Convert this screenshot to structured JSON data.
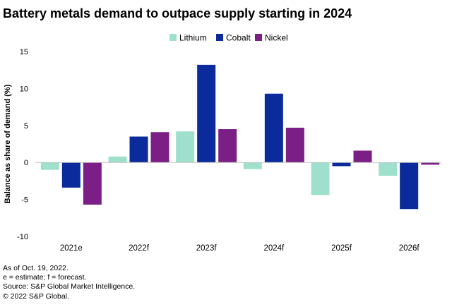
{
  "title": "Battery metals demand to outpace supply starting in 2024",
  "chart_data": {
    "type": "bar",
    "title": "Battery metals demand to outpace supply starting in 2024",
    "xlabel": "",
    "ylabel": "Balance as share of demand (%)",
    "ylim": [
      -10,
      15
    ],
    "yticks": [
      15,
      10,
      5,
      0,
      -5,
      -10
    ],
    "grid": false,
    "legend_position": "top-center",
    "categories": [
      "2021e",
      "2022f",
      "2023f",
      "2024f",
      "2025f",
      "2026f"
    ],
    "series": [
      {
        "name": "Lithium",
        "color": "#9ee0cc",
        "values": [
          -1.0,
          0.8,
          4.2,
          -0.9,
          -4.4,
          -1.8
        ]
      },
      {
        "name": "Cobalt",
        "color": "#0b2a9b",
        "values": [
          -3.4,
          3.5,
          13.2,
          9.3,
          -0.5,
          -6.3
        ]
      },
      {
        "name": "Nickel",
        "color": "#7b1f86",
        "values": [
          -5.7,
          4.1,
          4.5,
          4.7,
          1.6,
          -0.3
        ]
      }
    ]
  },
  "footnotes": [
    "As of Oct. 19, 2022.",
    "e = estimate; f = forecast.",
    "Source: S&P Global Market Intelligence.",
    "© 2022 S&P Global."
  ]
}
